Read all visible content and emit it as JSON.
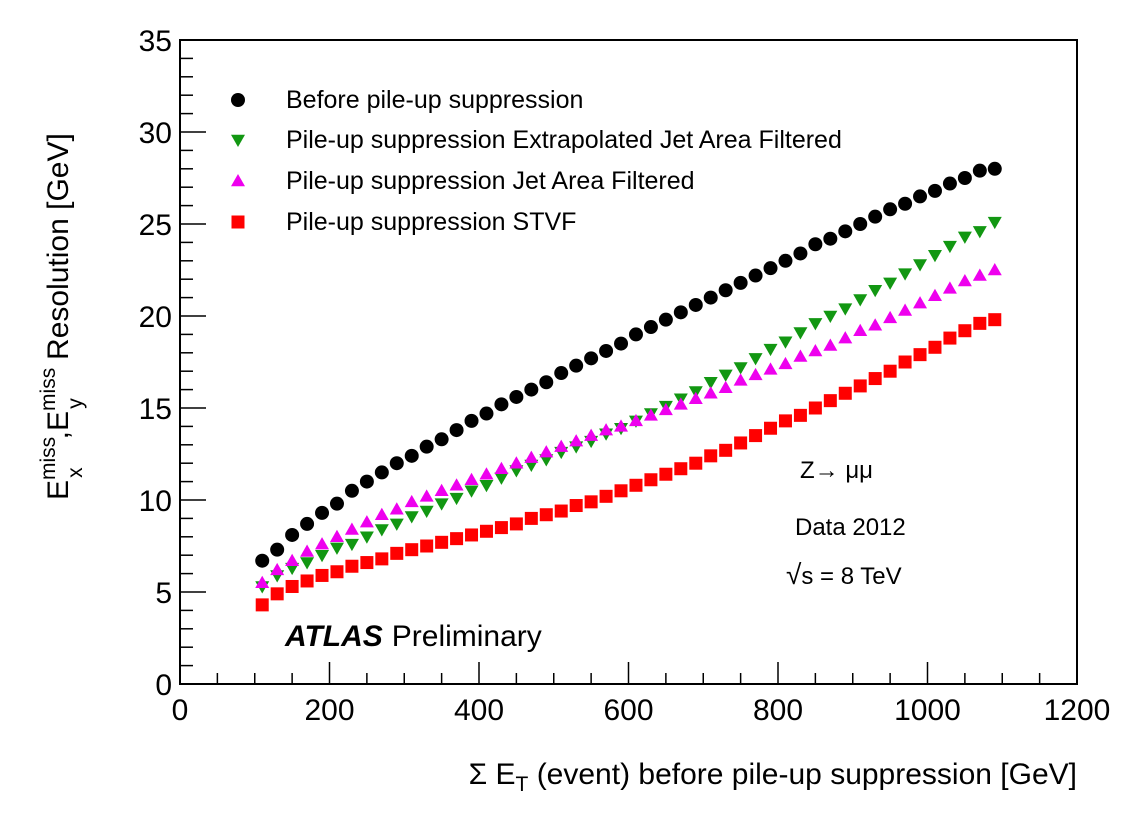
{
  "chart_data": {
    "type": "scatter",
    "xlabel": {
      "prefix": "Σ E",
      "sub": "T",
      "suffix": " (event) before pile-up suppression [GeV]"
    },
    "ylabel": {
      "e1": "E",
      "e1_sub": "x",
      "e1_sup": "miss",
      "sep": ",",
      "e2": "E",
      "e2_sub": "y",
      "e2_sup": "miss",
      "suffix": " Resolution [GeV]"
    },
    "xlim": [
      0,
      1200
    ],
    "ylim": [
      0,
      35
    ],
    "x_ticks": [
      "0",
      "200",
      "400",
      "600",
      "800",
      "1000",
      "1200"
    ],
    "y_ticks": [
      "0",
      "5",
      "10",
      "15",
      "20",
      "25",
      "30",
      "35"
    ],
    "legend_position": "top-left",
    "x": [
      110,
      130,
      150,
      170,
      190,
      210,
      230,
      250,
      270,
      290,
      310,
      330,
      350,
      370,
      390,
      410,
      430,
      450,
      470,
      490,
      510,
      530,
      550,
      570,
      590,
      610,
      630,
      650,
      670,
      690,
      710,
      730,
      750,
      770,
      790,
      810,
      830,
      850,
      870,
      890,
      910,
      930,
      950,
      970,
      990,
      1010,
      1030,
      1050,
      1070,
      1090
    ],
    "series": [
      {
        "name": "Before pile-up suppression",
        "marker": "circle",
        "color": "#000000",
        "values": [
          6.7,
          7.3,
          8.1,
          8.7,
          9.3,
          9.8,
          10.5,
          11.0,
          11.5,
          12.0,
          12.4,
          12.9,
          13.3,
          13.8,
          14.3,
          14.7,
          15.2,
          15.6,
          16.0,
          16.4,
          16.9,
          17.3,
          17.7,
          18.1,
          18.5,
          19.0,
          19.4,
          19.8,
          20.2,
          20.6,
          21.0,
          21.4,
          21.8,
          22.2,
          22.6,
          23.0,
          23.4,
          23.9,
          24.2,
          24.6,
          25.0,
          25.4,
          25.8,
          26.1,
          26.5,
          26.8,
          27.2,
          27.5,
          27.9,
          28.0
        ]
      },
      {
        "name": "Pile-up suppression Extrapolated Jet Area Filtered",
        "marker": "triangle-down",
        "color": "#129712",
        "values": [
          5.3,
          5.9,
          6.3,
          6.6,
          7.0,
          7.4,
          7.6,
          8.0,
          8.4,
          8.7,
          9.1,
          9.4,
          9.8,
          10.1,
          10.5,
          10.8,
          11.2,
          11.6,
          11.9,
          12.2,
          12.6,
          12.9,
          13.2,
          13.6,
          13.9,
          14.3,
          14.7,
          15.1,
          15.5,
          15.9,
          16.4,
          16.8,
          17.2,
          17.7,
          18.2,
          18.6,
          19.1,
          19.6,
          20.0,
          20.4,
          20.9,
          21.4,
          21.8,
          22.3,
          22.8,
          23.3,
          23.8,
          24.3,
          24.6,
          25.1
        ]
      },
      {
        "name": "Pile-up suppression Jet Area Filtered",
        "marker": "triangle-up",
        "color": "#ee00ee",
        "values": [
          5.5,
          6.2,
          6.7,
          7.2,
          7.6,
          8.0,
          8.4,
          8.8,
          9.2,
          9.5,
          9.9,
          10.2,
          10.5,
          10.8,
          11.1,
          11.4,
          11.7,
          12.0,
          12.3,
          12.6,
          12.9,
          13.2,
          13.5,
          13.8,
          14.0,
          14.3,
          14.6,
          14.9,
          15.2,
          15.5,
          15.8,
          16.1,
          16.5,
          16.8,
          17.1,
          17.4,
          17.8,
          18.1,
          18.4,
          18.8,
          19.2,
          19.5,
          19.9,
          20.3,
          20.7,
          21.1,
          21.5,
          21.9,
          22.2,
          22.5
        ]
      },
      {
        "name": "Pile-up suppression STVF",
        "marker": "square",
        "color": "#ff0000",
        "values": [
          4.3,
          4.9,
          5.3,
          5.6,
          5.9,
          6.1,
          6.4,
          6.6,
          6.8,
          7.1,
          7.3,
          7.5,
          7.7,
          7.9,
          8.1,
          8.3,
          8.5,
          8.7,
          9.0,
          9.2,
          9.4,
          9.7,
          9.9,
          10.2,
          10.5,
          10.8,
          11.1,
          11.4,
          11.7,
          12.0,
          12.4,
          12.7,
          13.1,
          13.5,
          13.9,
          14.3,
          14.6,
          15.0,
          15.4,
          15.8,
          16.2,
          16.6,
          17.0,
          17.5,
          17.9,
          18.3,
          18.8,
          19.2,
          19.6,
          19.8
        ]
      }
    ],
    "annotations": {
      "process_prefix": "Z→ ",
      "process_particles": "μμ",
      "dataset": "Data 2012",
      "energy_root": "√",
      "energy_text": "s = 8 TeV",
      "atlas": "ATLAS",
      "preliminary": "Preliminary"
    }
  }
}
